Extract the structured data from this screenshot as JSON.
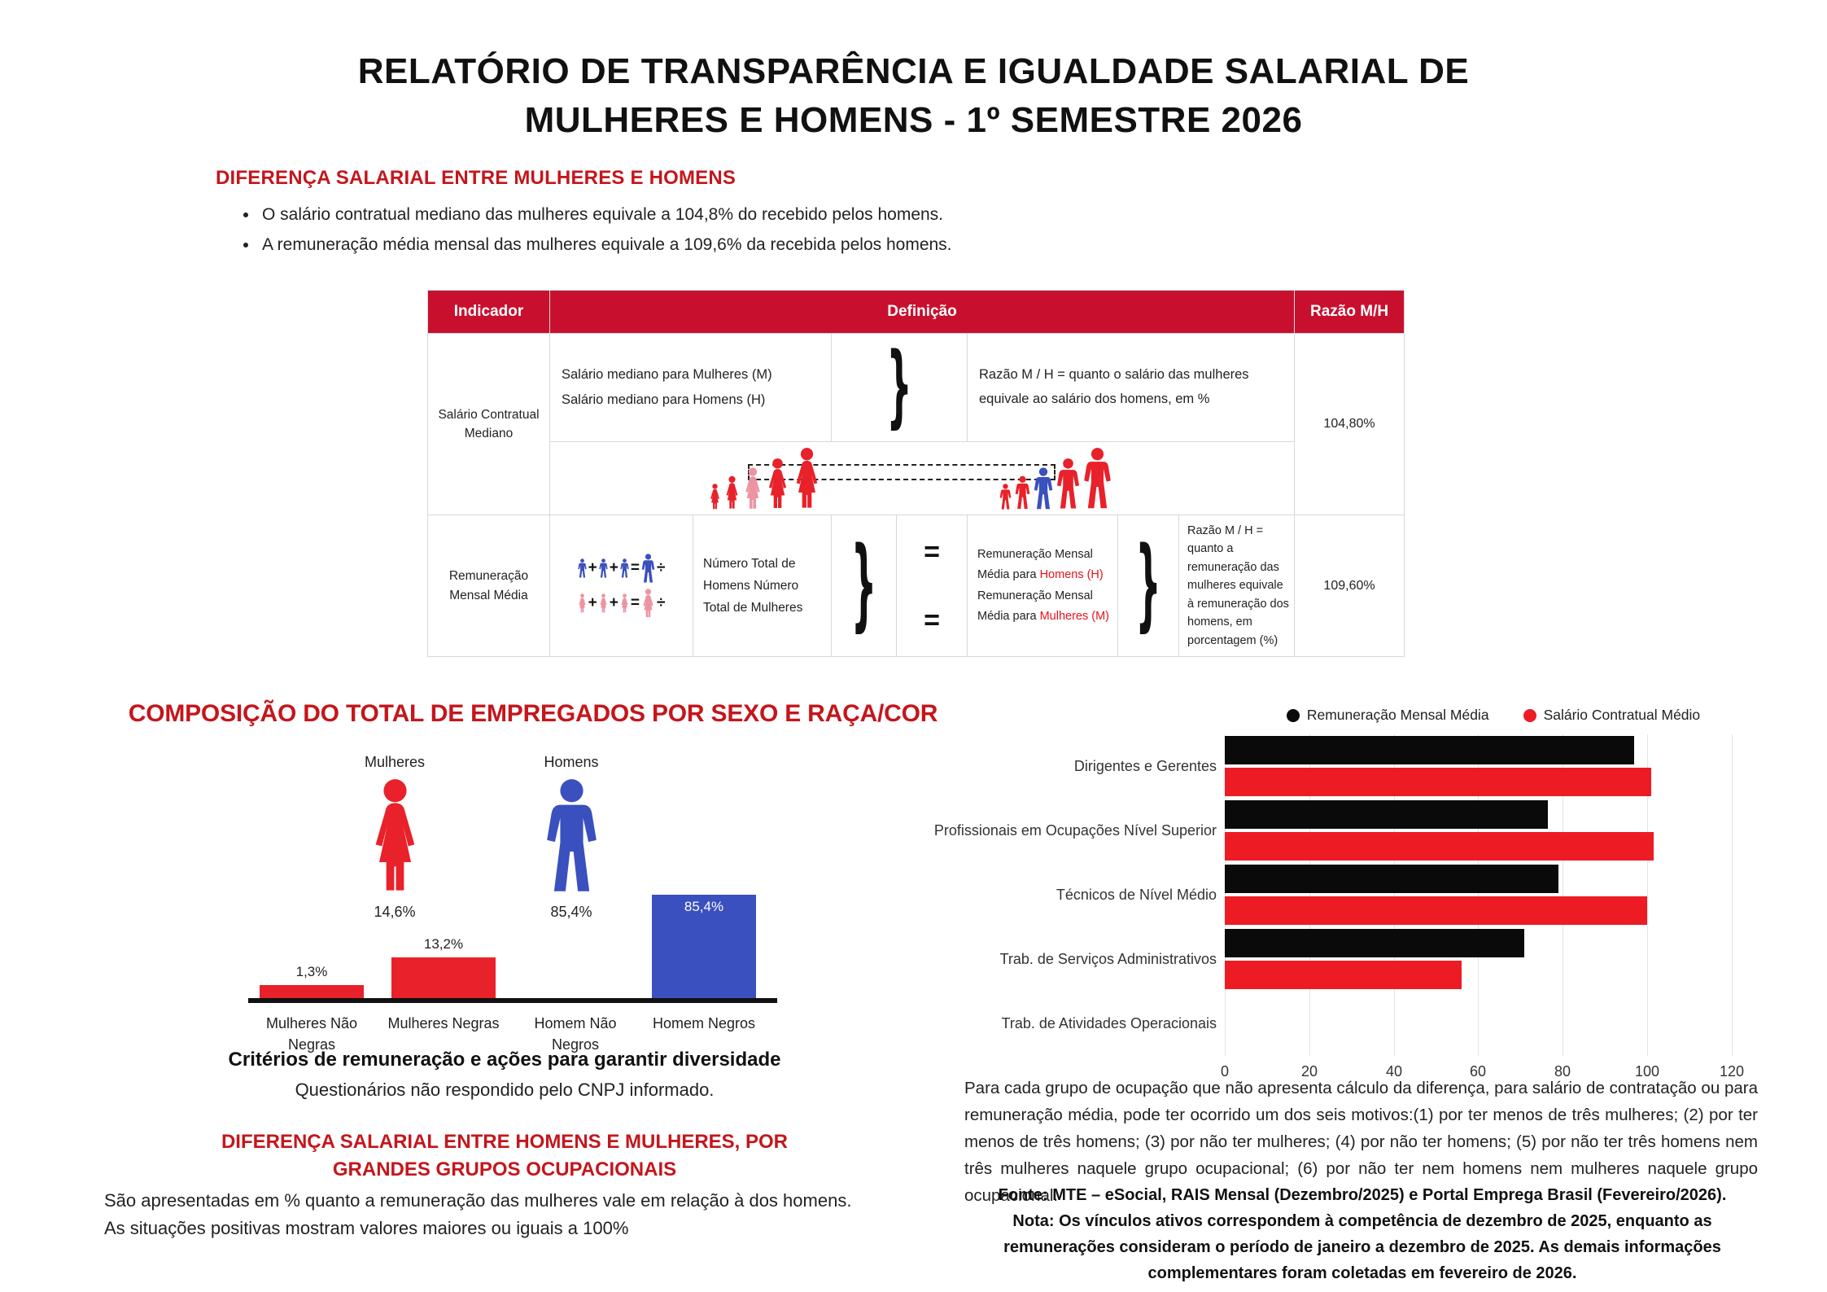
{
  "title": {
    "line1": "RELATÓRIO DE TRANSPARÊNCIA E IGUALDADE SALARIAL DE",
    "line2": "MULHERES E HOMENS - 1º SEMESTRE 2026"
  },
  "diferenca": {
    "heading": "DIFERENÇA SALARIAL ENTRE MULHERES E HOMENS",
    "bullets": [
      "O salário contratual mediano das mulheres equivale a 104,8% do recebido pelos homens.",
      "A remuneração média mensal das mulheres equivale a 109,6% da recebida pelos homens."
    ]
  },
  "table": {
    "headers": {
      "indicador": "Indicador",
      "definicao": "Definição",
      "razao": "Razão M/H"
    },
    "icons": {
      "plus": "+",
      "equals": "=",
      "divide": "÷",
      "brace": "}"
    },
    "row_mediano": {
      "indicador": "Salário Contratual Mediano",
      "def_line1": "Salário mediano para Mulheres (M)",
      "def_line2": "Salário mediano para Homens (H)",
      "razao_def": "Razão M / H = quanto o salário das mulheres equivale ao salário dos homens, em %",
      "valor": "104,80%"
    },
    "row_media": {
      "indicador": "Remuneração Mensal Média",
      "numero_text": "Número Total de Homens Número Total de Mulheres",
      "remun_part1": "Remuneração Mensal Média para ",
      "remun_homens": "Homens (H)",
      "remun_part2": " Remuneração Mensal Média para ",
      "remun_mulheres": "Mulheres (M)",
      "razao_def": "Razão M / H = quanto a remuneração das mulheres equivale à remuneração dos homens, em porcentagem (%)",
      "valor": "109,60%"
    }
  },
  "composicao": {
    "heading": "COMPOSIÇÃO DO TOTAL DE EMPREGADOS POR SEXO E RAÇA/COR",
    "mulheres_label": "Mulheres",
    "mulheres_pct": "14,6%",
    "homens_label": "Homens",
    "homens_pct": "85,4%"
  },
  "criterios": {
    "title": "Critérios de remuneração e ações para garantir diversidade",
    "text": "Questionários não respondido pelo CNPJ informado."
  },
  "ocupacional": {
    "heading_line1": "DIFERENÇA SALARIAL ENTRE HOMENS E MULHERES, POR",
    "heading_line2": "GRANDES GRUPOS OCUPACIONAIS",
    "par_line1": "São apresentadas em % quanto a remuneração das mulheres vale em relação à dos homens.",
    "par_line2": "As situações positivas mostram valores maiores ou iguais a 100%"
  },
  "nota_right": {
    "paragraph": "Para cada grupo de ocupação que não apresenta cálculo da diferença, para salário de contratação ou para remuneração média, pode ter ocorrido um dos seis motivos:(1) por ter menos de três mulheres; (2) por ter menos de três homens; (3) por não ter mulheres; (4) por não ter homens; (5) por não ter três homens nem três mulheres naquele grupo ocupacional; (6) por não ter nem homens nem mulheres naquele grupo ocupacional.",
    "fonte": "Fonte: MTE – eSocial, RAIS Mensal (Dezembro/2025) e Portal Emprega Brasil (Fevereiro/2026).",
    "nota": "Nota: Os vínculos ativos correspondem à competência de dezembro de 2025, enquanto as remunerações consideram o período de janeiro a dezembro de 2025. As demais informações complementares foram coletadas em fevereiro de 2026."
  },
  "colors": {
    "header_red": "#c8102e",
    "heading_red": "#c4161c",
    "icon_red": "#e8212a",
    "chart_red": "#ed1c24",
    "blue": "#3a50be",
    "pink": "#ec94a1",
    "black_bar": "#0a0a0a"
  },
  "chart_data": [
    {
      "type": "bar",
      "title": "Composição do total de empregados por sexo e raça/cor",
      "categories": [
        "Mulheres Não Negras",
        "Mulheres Negras",
        "Homem Não Negros",
        "Homem Negros"
      ],
      "values": [
        1.3,
        13.2,
        0,
        85.4
      ],
      "value_labels": [
        "1,3%",
        "13,2%",
        "",
        "85,4%"
      ],
      "bar_colors": [
        "#e8212a",
        "#e8212a",
        "#e8212a",
        "#3a50be"
      ],
      "ylim": [
        0,
        100
      ],
      "grid": false,
      "summary": {
        "mulheres_total": "14,6%",
        "homens_total": "85,4%"
      }
    },
    {
      "type": "bar",
      "orientation": "horizontal",
      "categories": [
        "Dirigentes e Gerentes",
        "Profissionais em Ocupações Nível Superior",
        "Técnicos de Nível Médio",
        "Trab. de Serviços Administrativos",
        "Trab. de Atividades Operacionais"
      ],
      "series": [
        {
          "name": "Remuneração Mensal Média",
          "color": "#0a0a0a",
          "values": [
            97,
            76.5,
            79,
            71,
            0
          ]
        },
        {
          "name": "Salário Contratual Médio",
          "color": "#ed1c24",
          "values": [
            101,
            101.5,
            100,
            56,
            0
          ]
        }
      ],
      "xlim": [
        0,
        120
      ],
      "xticks": [
        0,
        20,
        40,
        60,
        80,
        100,
        120
      ],
      "legend_position": "top",
      "grid": true
    }
  ]
}
